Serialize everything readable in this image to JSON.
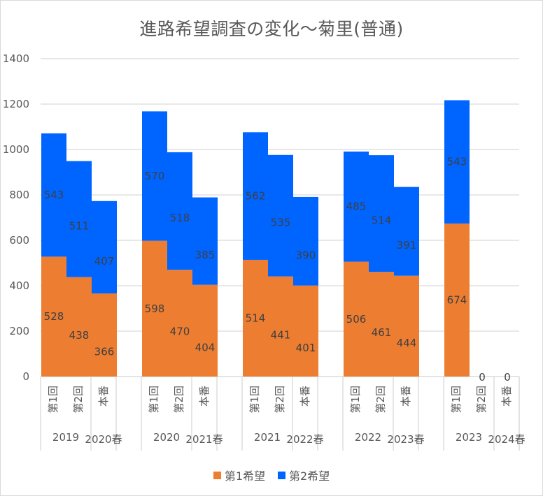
{
  "chart_data": {
    "type": "bar",
    "stacked": true,
    "title": "進路希望調査の変化～菊里(普通)",
    "xlabel": "",
    "ylabel": "",
    "ylim": [
      0,
      1400
    ],
    "yticks": [
      0,
      200,
      400,
      600,
      800,
      1000,
      1200,
      1400
    ],
    "grid": true,
    "legend_position": "bottom",
    "groups": [
      {
        "year": "2019",
        "spring": "2020春",
        "categories": [
          "第1回",
          "第2回",
          "本番"
        ]
      },
      {
        "year": "2020",
        "spring": "2021春",
        "categories": [
          "第1回",
          "第2回",
          "本番"
        ]
      },
      {
        "year": "2021",
        "spring": "2022春",
        "categories": [
          "第1回",
          "第2回",
          "本番"
        ]
      },
      {
        "year": "2022",
        "spring": "2023春",
        "categories": [
          "第1回",
          "第2回",
          "本番"
        ]
      },
      {
        "year": "2023",
        "spring": "2024春",
        "categories": [
          "第1回",
          "第2回",
          "本番"
        ]
      }
    ],
    "series": [
      {
        "name": "第1希望",
        "color": "#ED7D31",
        "values": [
          [
            528,
            438,
            366
          ],
          [
            598,
            470,
            404
          ],
          [
            514,
            441,
            401
          ],
          [
            506,
            461,
            444
          ],
          [
            674,
            0,
            0
          ]
        ]
      },
      {
        "name": "第2希望",
        "color": "#0064FF",
        "values": [
          [
            543,
            511,
            407
          ],
          [
            570,
            518,
            385
          ],
          [
            562,
            535,
            390
          ],
          [
            485,
            514,
            391
          ],
          [
            543,
            null,
            null
          ]
        ]
      }
    ]
  }
}
